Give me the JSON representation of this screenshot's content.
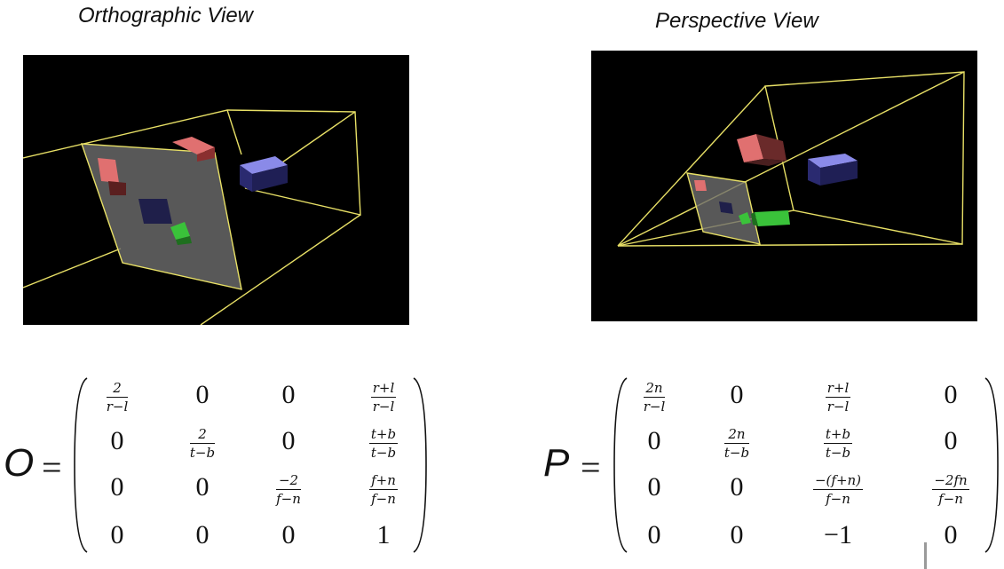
{
  "left": {
    "title": "Orthographic View",
    "matrix_name": "O",
    "equals": "=",
    "matrix": [
      [
        {
          "n": "2",
          "d": "r−l"
        },
        "0",
        "0",
        {
          "n": "r+l",
          "d": "r−l"
        }
      ],
      [
        "0",
        {
          "n": "2",
          "d": "t−b"
        },
        "0",
        {
          "n": "t+b",
          "d": "t−b"
        }
      ],
      [
        "0",
        "0",
        {
          "n": "−2",
          "d": "f−n"
        },
        {
          "n": "f+n",
          "d": "f−n"
        }
      ],
      [
        "0",
        "0",
        "0",
        "1"
      ]
    ]
  },
  "right": {
    "title": "Perspective View",
    "matrix_name": "P",
    "equals": "=",
    "matrix": [
      [
        {
          "n": "2n",
          "d": "r−l"
        },
        "0",
        {
          "n": "r+l",
          "d": "r−l"
        },
        "0"
      ],
      [
        "0",
        {
          "n": "2n",
          "d": "t−b"
        },
        {
          "n": "t+b",
          "d": "t−b"
        },
        "0"
      ],
      [
        "0",
        "0",
        {
          "n": "−(f+n)",
          "d": "f−n"
        },
        {
          "n": "−2fn",
          "d": "f−n"
        }
      ],
      [
        "0",
        "0",
        "−1",
        "0"
      ]
    ]
  },
  "colors": {
    "frustum_line": "#e8e066",
    "red_cube": "#e07070",
    "blue_cube": "#8a8ae8",
    "green_cube": "#3ac23a",
    "plane": "#6e6e6e"
  }
}
